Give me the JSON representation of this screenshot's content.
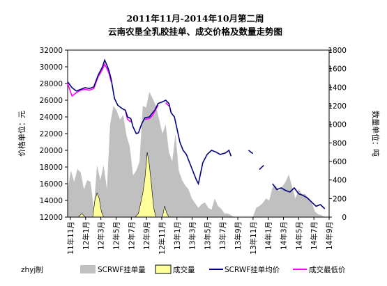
{
  "chart_data": {
    "type": "line+area",
    "title_line1": "2011年11月-2014年10月第二周",
    "title_line2": "云南农垦全乳胶挂单、成交价格及数量走势图",
    "ylabel_left": "价格单位：元",
    "ylabel_right": "数量单位：吨",
    "ylim_left": [
      12000,
      32000
    ],
    "ylim_right": [
      0,
      1800
    ],
    "yticks_left": [
      "12000",
      "14000",
      "16000",
      "18000",
      "20000",
      "22000",
      "24000",
      "26000",
      "28000",
      "30000",
      "32000"
    ],
    "yticks_right": [
      "0",
      "200",
      "400",
      "600",
      "800",
      "1000",
      "1200",
      "1400",
      "1600",
      "1800"
    ],
    "x_ticks": [
      "11年11月",
      "12年1月",
      "12年3月",
      "12年5月",
      "12年7月",
      "12年9月",
      "12年11月",
      "13年1月",
      "13年3月",
      "13年5月",
      "13年7月",
      "13年9月",
      "13年11月",
      "14年1月",
      "14年3月",
      "14年5月",
      "14年7月",
      "14年9月"
    ],
    "legend": {
      "prefix": "zhyj制",
      "items": [
        {
          "name": "SCRWF挂单量",
          "type": "area",
          "color": "#c0c0c0"
        },
        {
          "name": "成交量",
          "type": "area",
          "color": "#ffff99"
        },
        {
          "name": "SCRWF挂单均价",
          "type": "line",
          "color": "#000080"
        },
        {
          "name": "成交最低价",
          "type": "line",
          "color": "#ff00ff"
        }
      ]
    },
    "series": [
      {
        "name": "SCRWF挂单均价",
        "axis": "left",
        "points": [
          [
            0,
            28200
          ],
          [
            0.4,
            27500
          ],
          [
            0.8,
            27100
          ],
          [
            1.2,
            27300
          ],
          [
            1.6,
            27500
          ],
          [
            2,
            27400
          ],
          [
            2.4,
            27600
          ],
          [
            2.8,
            29000
          ],
          [
            3.2,
            30000
          ],
          [
            3.4,
            30800
          ],
          [
            3.6,
            30200
          ],
          [
            3.8,
            29500
          ],
          [
            4.0,
            28500
          ],
          [
            4.3,
            26200
          ],
          [
            4.6,
            25400
          ],
          [
            5.0,
            25000
          ],
          [
            5.3,
            24800
          ],
          [
            5.5,
            24000
          ],
          [
            5.8,
            23800
          ],
          [
            6.0,
            22800
          ],
          [
            6.3,
            22000
          ],
          [
            6.5,
            22100
          ],
          [
            6.8,
            23200
          ],
          [
            7.1,
            23900
          ],
          [
            7.5,
            24000
          ],
          [
            7.8,
            24500
          ],
          [
            8.0,
            24800
          ],
          [
            8.3,
            25600
          ],
          [
            8.7,
            25800
          ],
          [
            9.0,
            26000
          ],
          [
            9.3,
            25600
          ],
          [
            9.5,
            24500
          ],
          [
            9.8,
            24000
          ],
          [
            10.0,
            22800
          ],
          [
            10.3,
            21000
          ],
          [
            10.6,
            20000
          ],
          [
            10.9,
            19500
          ],
          [
            11.2,
            18500
          ],
          [
            11.5,
            17500
          ],
          [
            11.8,
            16500
          ],
          [
            12.0,
            16000
          ],
          [
            12.4,
            18500
          ],
          [
            12.8,
            19500
          ],
          [
            13.2,
            20000
          ],
          [
            13.6,
            19800
          ],
          [
            14.0,
            19500
          ],
          [
            14.5,
            19700
          ],
          [
            14.8,
            20000
          ],
          [
            15.0,
            19300
          ],
          [
            null,
            null
          ],
          [
            16.6,
            20000
          ],
          [
            17.0,
            19600
          ],
          [
            null,
            null
          ],
          [
            17.6,
            17700
          ],
          [
            18.0,
            18200
          ],
          [
            null,
            null
          ],
          [
            18.8,
            16000
          ],
          [
            19.2,
            15300
          ],
          [
            19.6,
            15500
          ],
          [
            20.0,
            15200
          ],
          [
            20.4,
            15000
          ],
          [
            20.8,
            15500
          ],
          [
            21.2,
            14800
          ],
          [
            21.6,
            14600
          ],
          [
            22.0,
            14300
          ],
          [
            22.4,
            13800
          ],
          [
            22.8,
            13300
          ],
          [
            23.2,
            13500
          ],
          [
            23.6,
            13000
          ]
        ]
      },
      {
        "name": "成交最低价",
        "axis": "left",
        "points": [
          [
            0,
            28000
          ],
          [
            0.4,
            26500
          ],
          [
            0.8,
            26900
          ],
          [
            1.2,
            27200
          ],
          [
            1.6,
            27300
          ],
          [
            2.0,
            27200
          ],
          [
            2.4,
            27400
          ],
          [
            2.8,
            28800
          ],
          [
            3.2,
            29700
          ],
          [
            3.4,
            30300
          ],
          [
            3.6,
            29800
          ],
          [
            3.8,
            29200
          ],
          [
            4.0,
            28200
          ],
          [
            null,
            null
          ],
          [
            5.3,
            24800
          ],
          [
            5.5,
            23700
          ],
          [
            5.8,
            23400
          ],
          [
            null,
            null
          ],
          [
            7.1,
            23700
          ],
          [
            7.5,
            23800
          ],
          [
            7.8,
            24200
          ],
          [
            8.0,
            24700
          ],
          [
            8.3,
            25400
          ],
          [
            null,
            null
          ],
          [
            9.0,
            25700
          ],
          [
            9.3,
            25300
          ]
        ]
      },
      {
        "name": "SCRWF挂单量",
        "axis": "right",
        "points": [
          [
            0,
            300
          ],
          [
            0.3,
            500
          ],
          [
            0.6,
            380
          ],
          [
            0.9,
            520
          ],
          [
            1.2,
            480
          ],
          [
            1.5,
            300
          ],
          [
            1.8,
            400
          ],
          [
            2.1,
            380
          ],
          [
            2.4,
            100
          ],
          [
            2.7,
            560
          ],
          [
            3.0,
            400
          ],
          [
            3.3,
            560
          ],
          [
            3.6,
            300
          ],
          [
            3.9,
            1000
          ],
          [
            4.2,
            1200
          ],
          [
            4.5,
            1150
          ],
          [
            4.8,
            1050
          ],
          [
            5.1,
            1100
          ],
          [
            5.4,
            880
          ],
          [
            5.7,
            760
          ],
          [
            6.0,
            450
          ],
          [
            6.3,
            500
          ],
          [
            6.6,
            600
          ],
          [
            6.9,
            1200
          ],
          [
            7.2,
            1180
          ],
          [
            7.5,
            1350
          ],
          [
            7.8,
            1280
          ],
          [
            8.1,
            1200
          ],
          [
            8.4,
            1050
          ],
          [
            8.7,
            900
          ],
          [
            9.0,
            1000
          ],
          [
            9.3,
            700
          ],
          [
            9.6,
            600
          ],
          [
            9.9,
            900
          ],
          [
            10.2,
            500
          ],
          [
            10.5,
            400
          ],
          [
            10.8,
            340
          ],
          [
            11.1,
            300
          ],
          [
            11.4,
            200
          ],
          [
            11.7,
            150
          ],
          [
            12.0,
            100
          ],
          [
            12.3,
            140
          ],
          [
            12.6,
            160
          ],
          [
            12.9,
            100
          ],
          [
            13.2,
            80
          ],
          [
            13.5,
            200
          ],
          [
            13.8,
            120
          ],
          [
            14.1,
            90
          ],
          [
            14.4,
            40
          ],
          [
            14.7,
            40
          ],
          [
            15.0,
            20
          ],
          [
            15.3,
            0
          ],
          [
            17.0,
            0
          ],
          [
            17.3,
            100
          ],
          [
            17.6,
            120
          ],
          [
            17.9,
            150
          ],
          [
            18.2,
            200
          ],
          [
            18.5,
            180
          ],
          [
            18.8,
            320
          ],
          [
            19.1,
            340
          ],
          [
            19.4,
            280
          ],
          [
            19.7,
            330
          ],
          [
            20.0,
            380
          ],
          [
            20.3,
            460
          ],
          [
            20.6,
            330
          ],
          [
            20.9,
            200
          ],
          [
            21.2,
            300
          ],
          [
            21.5,
            250
          ],
          [
            21.8,
            250
          ],
          [
            22.1,
            200
          ],
          [
            22.4,
            160
          ],
          [
            22.7,
            60
          ],
          [
            23.0,
            30
          ],
          [
            23.3,
            20
          ],
          [
            23.6,
            0
          ]
        ]
      },
      {
        "name": "成交量",
        "axis": "right",
        "points": [
          [
            0,
            0
          ],
          [
            1.0,
            0
          ],
          [
            1.3,
            40
          ],
          [
            1.6,
            0
          ],
          [
            2.3,
            0
          ],
          [
            2.5,
            180
          ],
          [
            2.7,
            260
          ],
          [
            2.9,
            200
          ],
          [
            3.1,
            60
          ],
          [
            3.3,
            0
          ],
          [
            6.2,
            0
          ],
          [
            6.5,
            40
          ],
          [
            6.9,
            260
          ],
          [
            7.1,
            420
          ],
          [
            7.3,
            700
          ],
          [
            7.5,
            560
          ],
          [
            7.7,
            340
          ],
          [
            7.9,
            100
          ],
          [
            8.1,
            0
          ],
          [
            8.7,
            0
          ],
          [
            8.9,
            120
          ],
          [
            9.1,
            40
          ],
          [
            9.3,
            0
          ],
          [
            23.6,
            0
          ]
        ]
      }
    ],
    "x_range": [
      0,
      24
    ],
    "grid": "none",
    "legend_position": "bottom"
  }
}
